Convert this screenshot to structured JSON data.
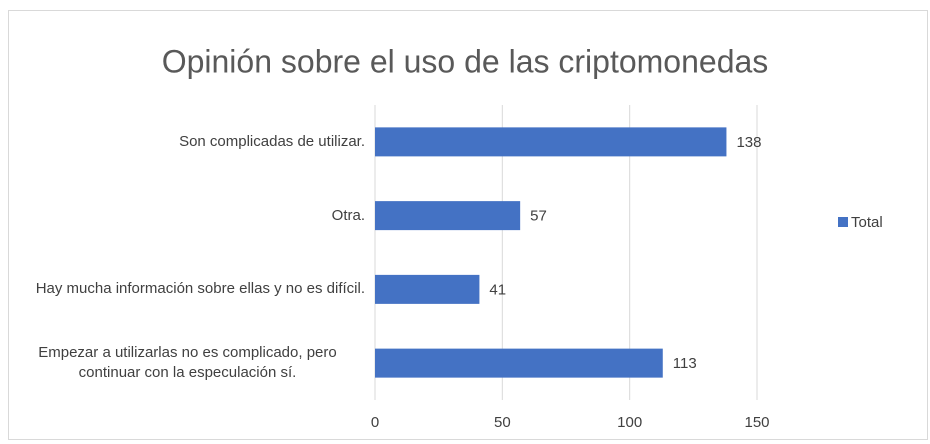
{
  "chart_data": {
    "type": "bar",
    "orientation": "horizontal",
    "title": "Opinión sobre el uso de las criptomonedas",
    "categories": [
      "Son complicadas de utilizar.",
      "Otra.",
      "Hay mucha información sobre ellas y no es difícil.",
      "Empezar a utilizarlas no es complicado, pero continuar con la especulación sí."
    ],
    "series": [
      {
        "name": "Total",
        "color": "#4472c4",
        "values": [
          138,
          57,
          41,
          113
        ]
      }
    ],
    "xlim": [
      0,
      150
    ],
    "xticks": [
      0,
      50,
      100,
      150
    ],
    "grid": true,
    "legend": "right"
  }
}
